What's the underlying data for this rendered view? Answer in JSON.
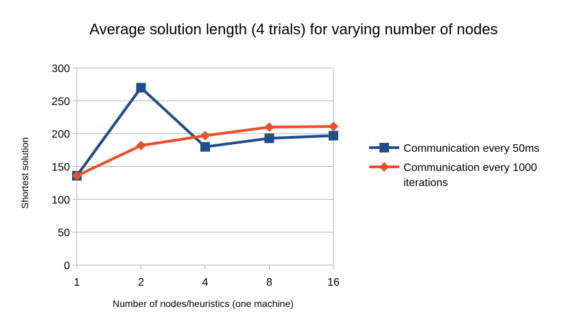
{
  "chart_data": {
    "type": "line",
    "title": "Average solution length (4 trials) for varying number of nodes",
    "xlabel": "Number of nodes/heuristics (one machine)",
    "ylabel": "Shortest solution",
    "categories": [
      "1",
      "2",
      "4",
      "8",
      "16"
    ],
    "ylim": [
      0,
      300
    ],
    "yticks": [
      "0",
      "50",
      "100",
      "150",
      "200",
      "250",
      "300"
    ],
    "grid": true,
    "legend_position": "right",
    "series": [
      {
        "name": "Communication every 50ms",
        "legend_lines": [
          "Communication every 50ms"
        ],
        "values": [
          136,
          270,
          180,
          193,
          197
        ],
        "color": "#1f4e8c",
        "marker": "square"
      },
      {
        "name": "Communication every 1000 iterations",
        "legend_lines": [
          "Communication every 1000",
          "iterations"
        ],
        "values": [
          136,
          182,
          197,
          210,
          211
        ],
        "color": "#e8502a",
        "marker": "diamond"
      }
    ]
  }
}
